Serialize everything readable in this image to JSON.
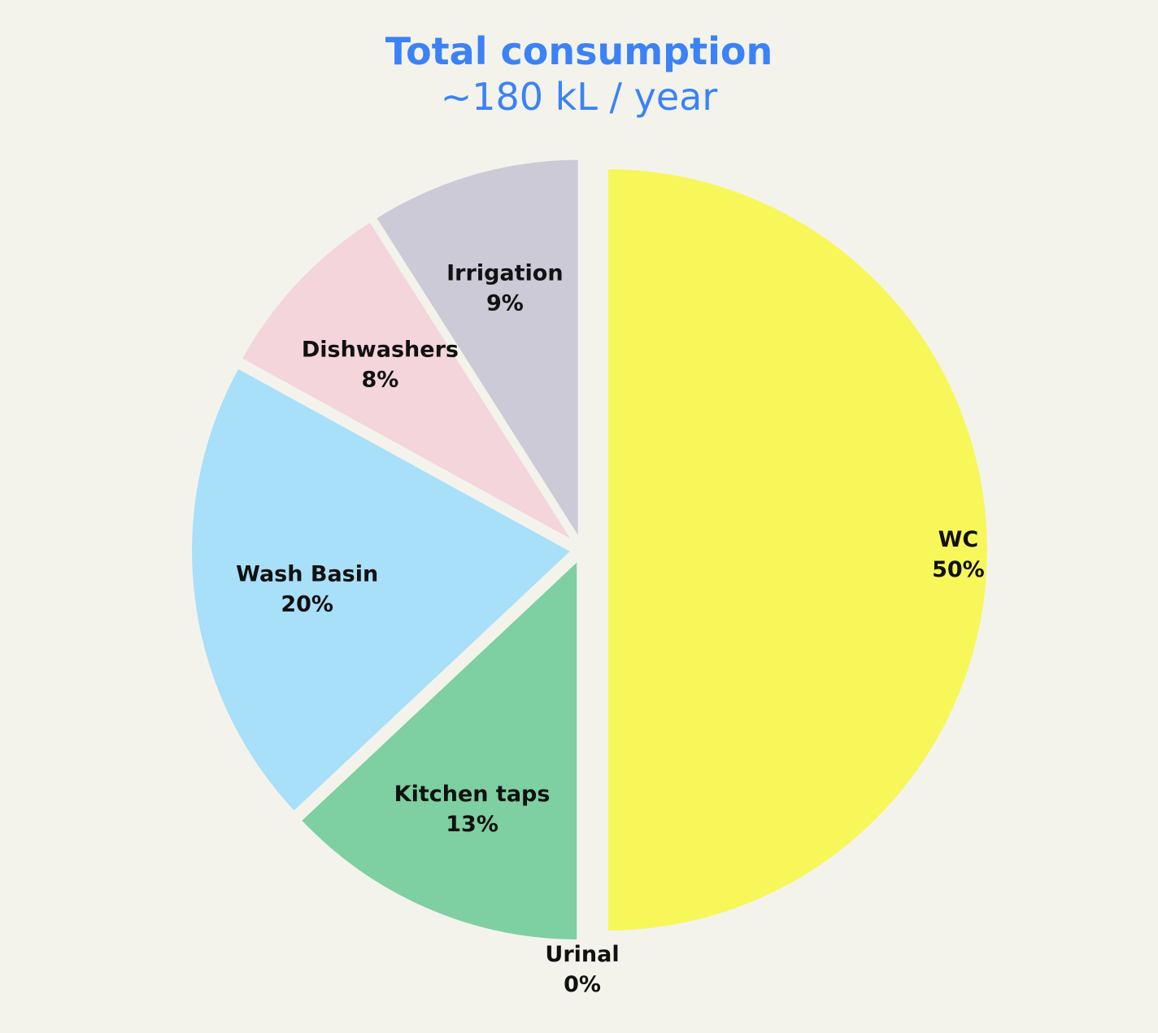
{
  "chart_data": {
    "type": "pie",
    "title": "Total consumption",
    "subtitle": "~180 kL / year",
    "slices": [
      {
        "name": "WC",
        "value": 50,
        "label": "50%",
        "color": "#f7f75a"
      },
      {
        "name": "Urinal",
        "value": 0,
        "label": "0%",
        "color": "#7ecfa2"
      },
      {
        "name": "Kitchen taps",
        "value": 13,
        "label": "13%",
        "color": "#7ecfa2"
      },
      {
        "name": "Wash Basin",
        "value": 20,
        "label": "20%",
        "color": "#a8dff9"
      },
      {
        "name": "Dishwashers",
        "value": 8,
        "label": "8%",
        "color": "#f4d5dc"
      },
      {
        "name": "Irrigation",
        "value": 9,
        "label": "9%",
        "color": "#cccad6"
      }
    ]
  },
  "colors": {
    "background": "#f3f3ec",
    "title": "#3b82f6"
  }
}
